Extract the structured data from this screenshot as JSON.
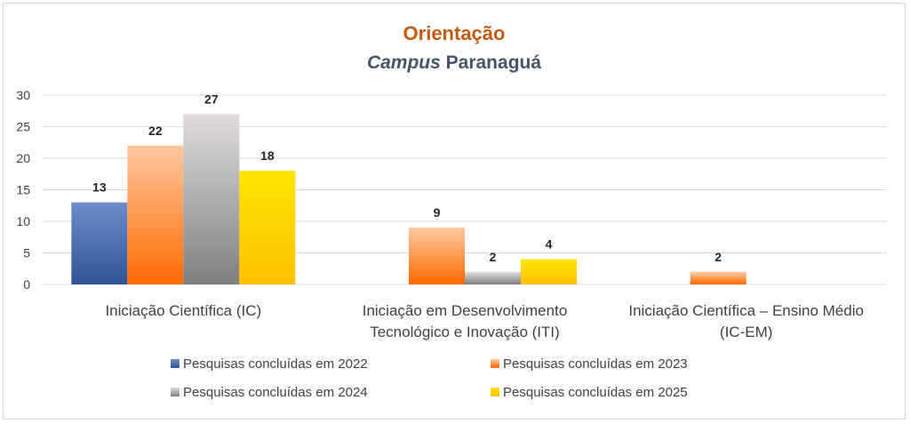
{
  "chart_data": {
    "type": "bar",
    "title": "Orientação",
    "subtitle_italic": "Campus",
    "subtitle_rest": " Paranaguá",
    "categories": [
      [
        "Iniciação Científica (IC)"
      ],
      [
        "Iniciação em Desenvolvimento",
        "Tecnológico e Inovação (ITI)"
      ],
      [
        "Iniciação Científica – Ensino Médio",
        "(IC-EM)"
      ]
    ],
    "series": [
      {
        "name": "Pesquisas concluídas em 2022",
        "values": [
          13,
          null,
          null
        ],
        "color": "#2f5597",
        "color_light": "#6d8ccd"
      },
      {
        "name": "Pesquisas concluídas em 2023",
        "values": [
          22,
          9,
          2
        ],
        "color": "#ff6a00",
        "color_light": "#ffc8a0"
      },
      {
        "name": "Pesquisas concluídas em 2024",
        "values": [
          27,
          2,
          null
        ],
        "color": "#7f7f7f",
        "color_light": "#e0dcdc"
      },
      {
        "name": "Pesquisas concluídas em 2025",
        "values": [
          18,
          4,
          null
        ],
        "color": "#ffc000",
        "color_light": "#ffe600"
      }
    ],
    "ylim": [
      0,
      30
    ],
    "yticks": [
      0,
      5,
      10,
      15,
      20,
      25,
      30
    ],
    "grid": true,
    "legend": "bottom"
  }
}
